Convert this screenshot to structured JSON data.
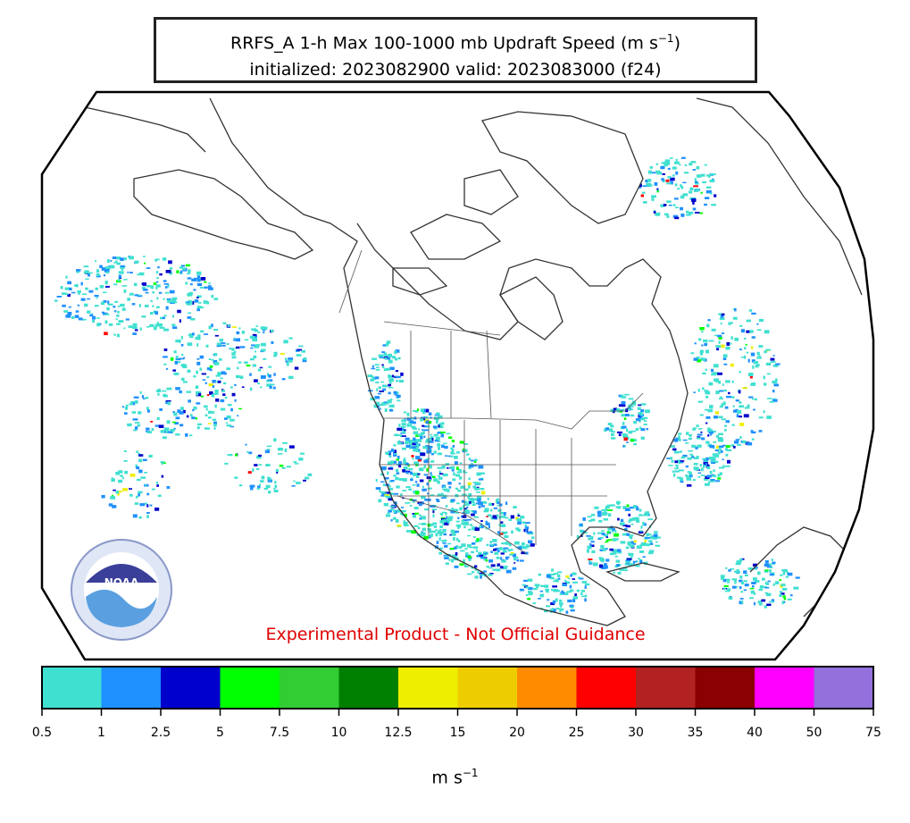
{
  "title": {
    "line1_text": "RRFS_A 1-h Max 100-1000 mb Updraft Speed (m s",
    "line1_sup": "−1",
    "line1_end": ")",
    "line2": "initialized: 2023082900 valid: 2023083000 (f24)"
  },
  "warning": "Experimental Product - Not Official Guidance",
  "logo_text": "NOAA",
  "colorbar": {
    "label_text": "m s",
    "label_sup": "−1",
    "colors": [
      "#40e0d0",
      "#1e90ff",
      "#0000cd",
      "#00ff00",
      "#32cd32",
      "#008000",
      "#eeee00",
      "#eecd00",
      "#ff8c00",
      "#ff0000",
      "#b22222",
      "#8b0000",
      "#ff00ff",
      "#9370db"
    ],
    "ticks": [
      "0.5",
      "1",
      "2.5",
      "5",
      "7.5",
      "10",
      "12.5",
      "15",
      "20",
      "25",
      "30",
      "35",
      "40",
      "50",
      "75"
    ]
  },
  "map": {
    "land_outline_color": "#333333",
    "field_colors": [
      "#40e0d0",
      "#1e90ff",
      "#0000cd",
      "#00ff00",
      "#eeee00",
      "#ff0000"
    ]
  }
}
